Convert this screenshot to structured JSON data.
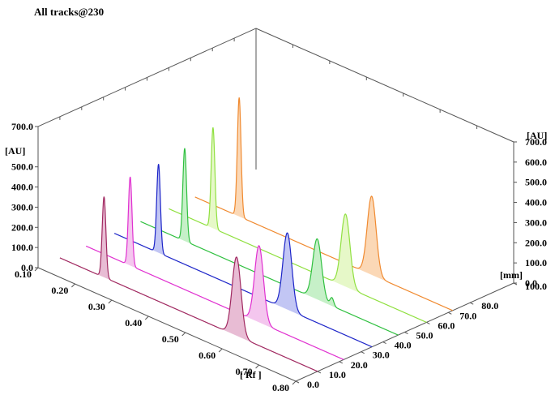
{
  "chart_data": {
    "type": "line",
    "title": "All tracks@230",
    "x_axis": {
      "label": "[ Rf ]",
      "range": [
        0.1,
        0.8
      ],
      "ticks": [
        "0.10",
        "0.20",
        "0.30",
        "0.40",
        "0.50",
        "0.60",
        "0.70",
        "0.80"
      ]
    },
    "y_axis": {
      "label": "[mm]",
      "range": [
        0.0,
        100.0
      ],
      "ticks": [
        "0.0",
        "10.0",
        "20.0",
        "30.0",
        "40.0",
        "50.0",
        "60.0",
        "70.0",
        "80.0",
        "100.0"
      ]
    },
    "z_axis_left": {
      "label": "[AU]",
      "ticks": [
        "0.0",
        "100.0",
        "200.0",
        "300.0",
        "400.0",
        "500.0",
        "700.0"
      ]
    },
    "z_axis_right": {
      "label": "[AU]",
      "ticks": [
        "0.0",
        "100.0",
        "200.0",
        "300.0",
        "400.0",
        "500.0",
        "600.0",
        "700.0"
      ]
    },
    "z_range": [
      0,
      700
    ],
    "grid": false,
    "series": [
      {
        "track_mm": 10,
        "color": "#a02860",
        "fill": "#e8bcd4",
        "peaks": [
          {
            "rf": 0.22,
            "height": 400,
            "width": 0.005
          },
          {
            "rf": 0.58,
            "height": 390,
            "width": 0.012
          }
        ]
      },
      {
        "track_mm": 22,
        "color": "#e030d0",
        "fill": "#f4c6ee",
        "peaks": [
          {
            "rf": 0.22,
            "height": 440,
            "width": 0.005
          },
          {
            "rf": 0.57,
            "height": 380,
            "width": 0.012
          }
        ]
      },
      {
        "track_mm": 35,
        "color": "#1c24c8",
        "fill": "#c2c6f4",
        "peaks": [
          {
            "rf": 0.22,
            "height": 440,
            "width": 0.005
          },
          {
            "rf": 0.57,
            "height": 380,
            "width": 0.012
          }
        ]
      },
      {
        "track_mm": 47,
        "color": "#30c040",
        "fill": "#c6f0c8",
        "peaks": [
          {
            "rf": 0.22,
            "height": 460,
            "width": 0.005
          },
          {
            "rf": 0.58,
            "height": 300,
            "width": 0.012
          },
          {
            "rf": 0.62,
            "height": 40,
            "width": 0.005
          }
        ]
      },
      {
        "track_mm": 60,
        "color": "#90e040",
        "fill": "#e6f8c8",
        "peaks": [
          {
            "rf": 0.22,
            "height": 500,
            "width": 0.005
          },
          {
            "rf": 0.58,
            "height": 360,
            "width": 0.012
          }
        ]
      },
      {
        "track_mm": 72,
        "color": "#f08a30",
        "fill": "#fbd8b6",
        "peaks": [
          {
            "rf": 0.22,
            "height": 590,
            "width": 0.005
          },
          {
            "rf": 0.58,
            "height": 390,
            "width": 0.012
          }
        ]
      }
    ]
  }
}
